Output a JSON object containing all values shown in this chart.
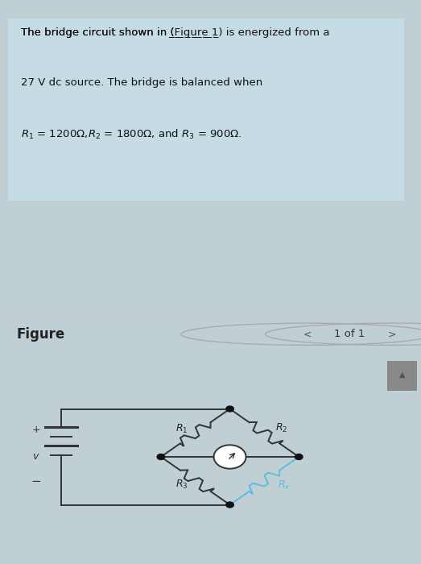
{
  "page_bg": "#bfcfd4",
  "text_box_bg": "#c5dce5",
  "text_box_border": "#b0ccd6",
  "nav_bar_bg": "#e8e8e8",
  "circuit_area_bg": "#e0e0e0",
  "scrollbar_bg": "#b0b0b0",
  "scrollbar_thumb": "#888888",
  "wire_color": "#333333",
  "R4_wire_color": "#5bbfdb",
  "node_color": "#111111",
  "galv_color": "#333333",
  "line1": "The bridge circuit shown in (Figure 1) is energized from a",
  "line2": "27 V dc source. The bridge is balanced when",
  "line3": "R_1 = 1200Ω, R_2 = 1800Ω, and R_3 = 900Ω.",
  "figure_label": "Figure",
  "nav_text": "1 of 1",
  "font_size_text": 9.5,
  "font_size_nav": 11
}
